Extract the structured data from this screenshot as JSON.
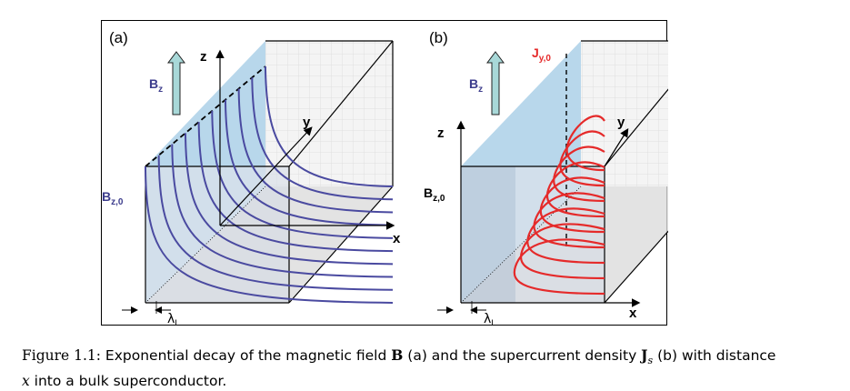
{
  "panel_a": {
    "label": "(a)",
    "field_label": "B",
    "field_sub": "z",
    "edge_label": "B",
    "edge_sub": "z,0",
    "axis_z": "z",
    "axis_y": "y",
    "axis_x": "x",
    "lambda": "λ",
    "lambda_sub": "L"
  },
  "panel_b": {
    "label": "(b)",
    "field_label": "B",
    "field_sub": "z",
    "current_label": "J",
    "current_sub": "y,0",
    "edge_label": "B",
    "edge_sub": "z,0",
    "axis_z": "z",
    "axis_y": "y",
    "axis_x": "x",
    "lambda": "λ",
    "lambda_sub": "L"
  },
  "colors": {
    "field_curves": "#4a4aa0",
    "current_curves": "#e52a2a",
    "surface_fill": "#a9cde6",
    "arrow_fill": "#a8d8d8"
  },
  "caption": {
    "prefix": "Figure 1.1:",
    "t1": " Exponential decay of the magnetic field ",
    "B": "B",
    "t2": " (a) and the supercurrent density ",
    "J": "J",
    "s": "s",
    "t3": " (b) with distance",
    "x": "x",
    "t4": " into a bulk superconductor."
  }
}
